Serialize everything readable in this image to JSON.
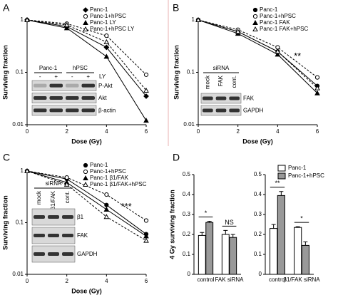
{
  "chart_data": [
    {
      "type": "line",
      "panel": "A",
      "xlabel": "Dose (Gy)",
      "ylabel": "Surviving fraction",
      "log_y": true,
      "x": [
        0,
        2,
        4,
        6
      ],
      "xlim": [
        0,
        6
      ],
      "xticks": [
        0,
        2,
        4,
        6
      ],
      "ylim": [
        0.01,
        1
      ],
      "yticks": [
        0.01,
        0.1,
        1
      ],
      "series": [
        {
          "name": "Panc-1",
          "color": "#000",
          "marker": "diamond",
          "filled": true,
          "dashed": false,
          "values": [
            1,
            0.75,
            0.3,
            0.035
          ]
        },
        {
          "name": "Panc-1+hPSC",
          "color": "#000",
          "marker": "circle",
          "filled": false,
          "dashed": true,
          "values": [
            1,
            0.85,
            0.5,
            0.09
          ]
        },
        {
          "name": "Panc-1 LY",
          "color": "#000",
          "marker": "triangle",
          "filled": true,
          "dashed": false,
          "values": [
            1,
            0.7,
            0.2,
            0.012
          ]
        },
        {
          "name": "Panc-1+hPSC LY",
          "color": "#000",
          "marker": "triangle",
          "filled": false,
          "dashed": true,
          "values": [
            1,
            0.8,
            0.38,
            0.045
          ]
        }
      ],
      "inset": {
        "groups": [
          "Panc-1",
          "hPSC"
        ],
        "lanes": [
          "-",
          "+",
          "-",
          "+"
        ],
        "lane_title": "LY",
        "bands": [
          "P-Akt",
          "Akt",
          "β-actin"
        ]
      }
    },
    {
      "type": "line",
      "panel": "B",
      "xlabel": "Dose (Gy)",
      "ylabel": "Surviving fraction",
      "log_y": true,
      "x": [
        0,
        2,
        4,
        6
      ],
      "xlim": [
        0,
        6
      ],
      "xticks": [
        0,
        2,
        4,
        6
      ],
      "ylim": [
        0.01,
        1
      ],
      "yticks": [
        0.01,
        0.1,
        1
      ],
      "annotation": "**",
      "series": [
        {
          "name": "Panc-1",
          "color": "#000",
          "marker": "circle",
          "filled": true,
          "dashed": false,
          "values": [
            1,
            0.6,
            0.25,
            0.055
          ]
        },
        {
          "name": "Panc-1+hPSC",
          "color": "#000",
          "marker": "circle",
          "filled": false,
          "dashed": true,
          "values": [
            1,
            0.65,
            0.3,
            0.08
          ]
        },
        {
          "name": "Panc-1 FAK",
          "color": "#000",
          "marker": "triangle",
          "filled": true,
          "dashed": false,
          "values": [
            1,
            0.55,
            0.22,
            0.04
          ]
        },
        {
          "name": "Panc-1 FAK+hPSC",
          "color": "#000",
          "marker": "triangle",
          "filled": false,
          "dashed": true,
          "values": [
            1,
            0.6,
            0.25,
            0.05
          ]
        }
      ],
      "inset": {
        "groups": [
          "siRNA"
        ],
        "lanes": [
          "mock",
          "FAK",
          "cont."
        ],
        "bands": [
          "FAK",
          "GAPDH"
        ]
      }
    },
    {
      "type": "line",
      "panel": "C",
      "xlabel": "Dose (Gy)",
      "ylabel": "Surviving fraction",
      "log_y": true,
      "x": [
        0,
        2,
        4,
        6
      ],
      "xlim": [
        0,
        6
      ],
      "xticks": [
        0,
        2,
        4,
        6
      ],
      "ylim": [
        0.01,
        1
      ],
      "yticks": [
        0.01,
        0.1,
        1
      ],
      "annotation": "***",
      "series": [
        {
          "name": "Panc-1",
          "color": "#000",
          "marker": "circle",
          "filled": true,
          "dashed": false,
          "values": [
            1,
            0.7,
            0.22,
            0.06
          ]
        },
        {
          "name": "Panc-1+hPSC",
          "color": "#000",
          "marker": "circle",
          "filled": false,
          "dashed": true,
          "values": [
            1,
            0.75,
            0.35,
            0.11
          ]
        },
        {
          "name": "Panc-1 β1/FAK",
          "color": "#000",
          "marker": "triangle",
          "filled": true,
          "dashed": false,
          "values": [
            1,
            0.6,
            0.18,
            0.055
          ]
        },
        {
          "name": "Panc-1 β1/FAK+hPSC",
          "color": "#000",
          "marker": "triangle",
          "filled": false,
          "dashed": true,
          "values": [
            1,
            0.55,
            0.13,
            0.045
          ]
        }
      ],
      "inset": {
        "groups": [
          "siRNA"
        ],
        "lanes": [
          "mock",
          "β1/FAK",
          "cont."
        ],
        "bands": [
          "β1",
          "FAK",
          "GAPDH"
        ]
      }
    },
    {
      "type": "bar",
      "panel": "D",
      "ylabel": "4 Gy surviving fraction",
      "categories": [
        "control",
        "FAK siRNA"
      ],
      "ylim": [
        0,
        0.5
      ],
      "yticks": [
        0,
        0.1,
        0.2,
        0.3,
        0.4,
        0.5
      ],
      "significance": [
        "*",
        "NS"
      ],
      "series": [
        {
          "color": "#ffffff",
          "values": [
            0.195,
            0.2
          ],
          "errors": [
            0.015,
            0.02
          ]
        },
        {
          "color": "#999999",
          "values": [
            0.26,
            0.185
          ],
          "errors": [
            0.006,
            0.015
          ]
        }
      ]
    },
    {
      "type": "bar",
      "categories": [
        "control",
        "β1/FAK siRNA"
      ],
      "ylim": [
        0,
        0.5
      ],
      "yticks": [
        0,
        0.1,
        0.2,
        0.3,
        0.4,
        0.5
      ],
      "significance": [
        "**",
        "*"
      ],
      "series": [
        {
          "name": "Panc-1",
          "color": "#ffffff",
          "values": [
            0.23,
            0.235
          ],
          "errors": [
            0.02,
            0.004
          ]
        },
        {
          "name": "Panc-1+hPSC",
          "color": "#999999",
          "values": [
            0.395,
            0.145
          ],
          "errors": [
            0.02,
            0.018
          ]
        }
      ]
    }
  ]
}
